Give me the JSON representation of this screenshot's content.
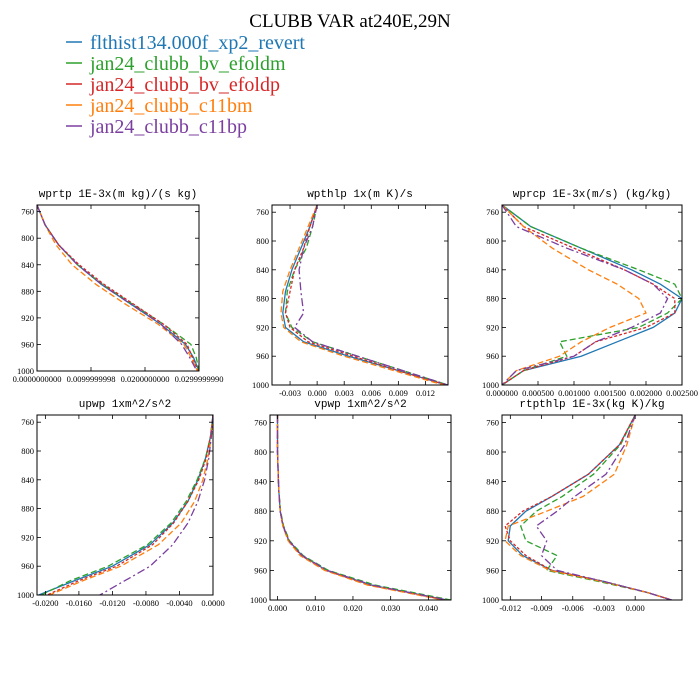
{
  "figure": {
    "title": "CLUBB VAR at240E,29N"
  },
  "legend": [
    {
      "name": "flthist134.000f_xp2_revert",
      "color": "#1f77b4",
      "dash": ""
    },
    {
      "name": "jan24_clubb_bv_efoldm",
      "color": "#2ca02c",
      "dash": "6 3"
    },
    {
      "name": "jan24_clubb_bv_efoldp",
      "color": "#d62728",
      "dash": "3 2"
    },
    {
      "name": "jan24_clubb_c11bm",
      "color": "#ff7f0e",
      "dash": "6 3"
    },
    {
      "name": "jan24_clubb_c11bp",
      "color": "#7b3fa0",
      "dash": "8 3 2 3"
    }
  ],
  "chart_data": [
    {
      "type": "line",
      "title": "wprtp  1E-3x(m kg)/(s kg)",
      "xlim": [
        0,
        0.03
      ],
      "ylim": [
        1000,
        750
      ],
      "xticks": [
        0,
        0.01,
        0.02,
        0.03
      ],
      "xticklabels": [
        "0.0000000000",
        "0.0099999998",
        "0.0200000000",
        "0.0299999990"
      ],
      "yticks": [
        760,
        800,
        840,
        880,
        920,
        960,
        1000
      ],
      "yticklabels": [
        "760",
        "800",
        "840",
        "880",
        "920",
        "960",
        "1000"
      ],
      "y": [
        750,
        780,
        810,
        840,
        870,
        900,
        930,
        960,
        980,
        1000
      ],
      "series": [
        {
          "name": "flthist134.000f_xp2_revert",
          "values": [
            0.0,
            0.0015,
            0.004,
            0.0075,
            0.012,
            0.0175,
            0.023,
            0.0275,
            0.029,
            0.03
          ]
        },
        {
          "name": "jan24_clubb_bv_efoldm",
          "values": [
            0.0,
            0.0015,
            0.004,
            0.0075,
            0.0122,
            0.0178,
            0.0235,
            0.0285,
            0.0295,
            0.03
          ]
        },
        {
          "name": "jan24_clubb_bv_efoldp",
          "values": [
            0.0,
            0.0015,
            0.004,
            0.0078,
            0.0125,
            0.018,
            0.0235,
            0.0278,
            0.0288,
            0.0298
          ]
        },
        {
          "name": "jan24_clubb_c11bm",
          "values": [
            0.0,
            0.0015,
            0.0035,
            0.0065,
            0.011,
            0.0165,
            0.0225,
            0.0272,
            0.0286,
            0.0297
          ]
        },
        {
          "name": "jan24_clubb_c11bp",
          "values": [
            0.0,
            0.0015,
            0.004,
            0.0075,
            0.012,
            0.0175,
            0.023,
            0.0268,
            0.0283,
            0.0296
          ]
        }
      ]
    },
    {
      "type": "line",
      "title": "wpthlp  1x(m K)/s",
      "xlim": [
        -0.005,
        0.0145
      ],
      "ylim": [
        1000,
        750
      ],
      "xticks": [
        -0.003,
        0.0,
        0.003,
        0.006,
        0.009,
        0.012
      ],
      "xticklabels": [
        "-0.003",
        "0.000",
        "0.003",
        "0.006",
        "0.009",
        "0.012"
      ],
      "yticks": [
        760,
        800,
        840,
        880,
        920,
        960,
        1000
      ],
      "yticklabels": [
        "760",
        "800",
        "840",
        "880",
        "920",
        "960",
        "1000"
      ],
      "y": [
        750,
        780,
        810,
        840,
        870,
        900,
        920,
        940,
        960,
        980,
        1000
      ],
      "series": [
        {
          "name": "flthist134.000f_xp2_revert",
          "values": [
            0.0,
            -0.0008,
            -0.0018,
            -0.0028,
            -0.0035,
            -0.0038,
            -0.0035,
            -0.0015,
            0.0035,
            0.009,
            0.0143
          ]
        },
        {
          "name": "jan24_clubb_bv_efoldm",
          "values": [
            0.0,
            -0.0005,
            -0.0012,
            -0.0025,
            -0.0033,
            -0.0035,
            -0.0028,
            -0.0005,
            0.0045,
            0.0095,
            0.0145
          ]
        },
        {
          "name": "jan24_clubb_bv_efoldp",
          "values": [
            0.0,
            -0.0008,
            -0.0015,
            -0.0025,
            -0.003,
            -0.0035,
            -0.003,
            -0.001,
            0.004,
            0.009,
            0.0143
          ]
        },
        {
          "name": "jan24_clubb_c11bm",
          "values": [
            0.0,
            -0.001,
            -0.002,
            -0.003,
            -0.0038,
            -0.004,
            -0.0037,
            -0.0018,
            0.003,
            0.0085,
            0.014
          ]
        },
        {
          "name": "jan24_clubb_c11bp",
          "values": [
            0.0,
            -0.0005,
            -0.0015,
            -0.002,
            -0.0018,
            -0.0015,
            -0.0025,
            -0.0005,
            0.0045,
            0.0095,
            0.0145
          ]
        }
      ]
    },
    {
      "type": "line",
      "title": "wprcp  1E-3x(m/s) (kg/kg)",
      "xlim": [
        0,
        0.0025
      ],
      "ylim": [
        1000,
        750
      ],
      "xticks": [
        0,
        0.0005,
        0.001,
        0.0015,
        0.002,
        0.0025
      ],
      "xticklabels": [
        "0.000000",
        "0.000500",
        "0.001000",
        "0.001500",
        "0.002000",
        "0.002500"
      ],
      "yticks": [
        760,
        800,
        840,
        880,
        920,
        960,
        1000
      ],
      "yticklabels": [
        "760",
        "800",
        "840",
        "880",
        "920",
        "960",
        "1000"
      ],
      "y": [
        750,
        780,
        810,
        840,
        860,
        880,
        900,
        920,
        940,
        960,
        980,
        1000
      ],
      "series": [
        {
          "name": "flthist134.000f_xp2_revert",
          "values": [
            0.0,
            0.0004,
            0.0011,
            0.0018,
            0.0022,
            0.0025,
            0.0024,
            0.0021,
            0.0016,
            0.0011,
            0.0003,
            0.0
          ]
        },
        {
          "name": "jan24_clubb_bv_efoldm",
          "values": [
            0.0,
            0.0004,
            0.0011,
            0.0019,
            0.0024,
            0.0025,
            0.0023,
            0.0019,
            0.0008,
            0.0009,
            0.0003,
            0.0
          ]
        },
        {
          "name": "jan24_clubb_bv_efoldp",
          "values": [
            0.0,
            0.0003,
            0.001,
            0.0017,
            0.0021,
            0.0024,
            0.0024,
            0.002,
            0.0013,
            0.001,
            0.0003,
            0.0
          ]
        },
        {
          "name": "jan24_clubb_c11bm",
          "values": [
            0.0,
            0.0003,
            0.0007,
            0.0012,
            0.0016,
            0.0019,
            0.002,
            0.0015,
            0.0011,
            0.0008,
            0.0002,
            0.0
          ]
        },
        {
          "name": "jan24_clubb_c11bp",
          "values": [
            0.0,
            0.0002,
            0.0009,
            0.0017,
            0.0021,
            0.0023,
            0.0022,
            0.0018,
            0.0013,
            0.001,
            0.0002,
            0.0
          ]
        }
      ]
    },
    {
      "type": "line",
      "title": "upwp  1xm^2/s^2",
      "xlim": [
        -0.021,
        0.0
      ],
      "ylim": [
        1000,
        750
      ],
      "xticks": [
        -0.02,
        -0.016,
        -0.012,
        -0.008,
        -0.004,
        0.0
      ],
      "xticklabels": [
        "-0.0200",
        "-0.0160",
        "-0.0120",
        "-0.0080",
        "-0.0040",
        "0.0000"
      ],
      "yticks": [
        760,
        800,
        840,
        880,
        920,
        960,
        1000
      ],
      "yticklabels": [
        "760",
        "800",
        "840",
        "880",
        "920",
        "960",
        "1000"
      ],
      "y": [
        750,
        780,
        810,
        840,
        870,
        900,
        930,
        960,
        980,
        1000
      ],
      "series": [
        {
          "name": "flthist134.000f_xp2_revert",
          "values": [
            0.0,
            -0.0003,
            -0.0009,
            -0.0018,
            -0.003,
            -0.0048,
            -0.0075,
            -0.012,
            -0.0165,
            -0.0208
          ]
        },
        {
          "name": "jan24_clubb_bv_efoldm",
          "values": [
            0.0,
            -0.0003,
            -0.0009,
            -0.0019,
            -0.0032,
            -0.005,
            -0.0078,
            -0.0125,
            -0.017,
            -0.0205
          ]
        },
        {
          "name": "jan24_clubb_bv_efoldp",
          "values": [
            0.0,
            -0.0003,
            -0.0008,
            -0.0017,
            -0.003,
            -0.0047,
            -0.0072,
            -0.0115,
            -0.016,
            -0.0198
          ]
        },
        {
          "name": "jan24_clubb_c11bm",
          "values": [
            0.0,
            -0.0002,
            -0.0006,
            -0.0012,
            -0.0022,
            -0.0038,
            -0.0065,
            -0.011,
            -0.0155,
            -0.0195
          ]
        },
        {
          "name": "jan24_clubb_c11bp",
          "values": [
            0.0,
            -0.0002,
            -0.0005,
            -0.001,
            -0.0018,
            -0.003,
            -0.0048,
            -0.0075,
            -0.0105,
            -0.0135
          ]
        }
      ]
    },
    {
      "type": "line",
      "title": "vpwp  1xm^2/s^2",
      "xlim": [
        -0.002,
        0.046
      ],
      "ylim": [
        1000,
        750
      ],
      "xticks": [
        0.0,
        0.01,
        0.02,
        0.03,
        0.04
      ],
      "xticklabels": [
        "0.000",
        "0.010",
        "0.020",
        "0.030",
        "0.040"
      ],
      "yticks": [
        760,
        800,
        840,
        880,
        920,
        960,
        1000
      ],
      "yticklabels": [
        "760",
        "800",
        "840",
        "880",
        "920",
        "960",
        "1000"
      ],
      "y": [
        750,
        800,
        850,
        880,
        900,
        920,
        940,
        960,
        980,
        1000
      ],
      "series": [
        {
          "name": "flthist134.000f_xp2_revert",
          "values": [
            0.0,
            0.0,
            0.0003,
            0.0007,
            0.0015,
            0.003,
            0.0065,
            0.013,
            0.025,
            0.045
          ]
        },
        {
          "name": "jan24_clubb_bv_efoldm",
          "values": [
            0.0,
            0.0,
            0.0003,
            0.0008,
            0.0016,
            0.0032,
            0.0068,
            0.0135,
            0.026,
            0.046
          ]
        },
        {
          "name": "jan24_clubb_bv_efoldp",
          "values": [
            0.0,
            0.0,
            0.0003,
            0.0007,
            0.0014,
            0.0029,
            0.0063,
            0.0128,
            0.0245,
            0.0445
          ]
        },
        {
          "name": "jan24_clubb_c11bm",
          "values": [
            0.0,
            0.0,
            0.0003,
            0.0007,
            0.0014,
            0.0028,
            0.006,
            0.0125,
            0.024,
            0.044
          ]
        },
        {
          "name": "jan24_clubb_c11bp",
          "values": [
            0.0,
            0.0,
            0.0003,
            0.0007,
            0.0015,
            0.003,
            0.0066,
            0.0132,
            0.0252,
            0.045
          ]
        }
      ]
    },
    {
      "type": "line",
      "title": "rtpthlp  1E-3x(kg K)/kg",
      "xlim": [
        -0.0128,
        0.0045
      ],
      "ylim": [
        1000,
        750
      ],
      "xticks": [
        -0.012,
        -0.009,
        -0.006,
        -0.003,
        0.0
      ],
      "xticklabels": [
        "-0.012",
        "-0.009",
        "-0.006",
        "-0.003",
        "0.000"
      ],
      "yticks": [
        760,
        800,
        840,
        880,
        920,
        960,
        1000
      ],
      "yticklabels": [
        "760",
        "800",
        "840",
        "880",
        "920",
        "960",
        "1000"
      ],
      "y": [
        750,
        790,
        830,
        860,
        880,
        900,
        920,
        940,
        960,
        975,
        990,
        1000
      ],
      "series": [
        {
          "name": "flthist134.000f_xp2_revert",
          "values": [
            0.0,
            -0.0015,
            -0.0045,
            -0.008,
            -0.0105,
            -0.012,
            -0.0122,
            -0.0108,
            -0.008,
            -0.003,
            0.0012,
            0.0035
          ]
        },
        {
          "name": "jan24_clubb_bv_efoldm",
          "values": [
            0.0,
            -0.0014,
            -0.004,
            -0.007,
            -0.0095,
            -0.011,
            -0.0105,
            -0.0075,
            -0.0085,
            -0.0035,
            0.0012,
            0.0035
          ]
        },
        {
          "name": "jan24_clubb_bv_efoldp",
          "values": [
            0.0,
            -0.0015,
            -0.0045,
            -0.008,
            -0.0108,
            -0.0125,
            -0.012,
            -0.0105,
            -0.008,
            -0.003,
            0.0012,
            0.0035
          ]
        },
        {
          "name": "jan24_clubb_c11bm",
          "values": [
            0.0,
            -0.0008,
            -0.002,
            -0.005,
            -0.0085,
            -0.0122,
            -0.0125,
            -0.011,
            -0.0082,
            -0.0032,
            0.0012,
            0.0035
          ]
        },
        {
          "name": "jan24_clubb_c11bp",
          "values": [
            0.0,
            -0.001,
            -0.0028,
            -0.0058,
            -0.0075,
            -0.0095,
            -0.0085,
            -0.009,
            -0.0075,
            -0.003,
            0.0012,
            0.0035
          ]
        }
      ]
    }
  ]
}
